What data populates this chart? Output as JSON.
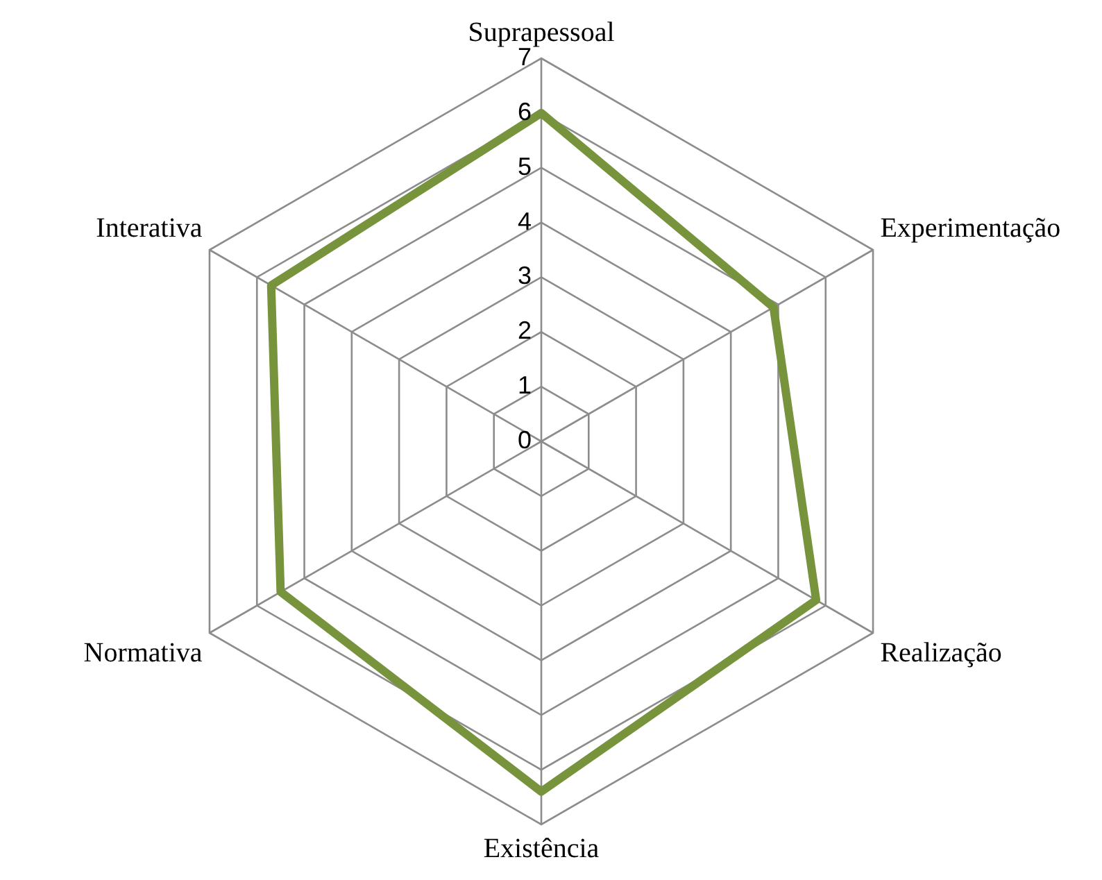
{
  "chart_data": {
    "type": "radar",
    "categories": [
      "Suprapessoal",
      "Experimentação",
      "Realização",
      "Existência",
      "Normativa",
      "Interativa"
    ],
    "series": [
      {
        "color": "#77933c",
        "values": [
          6.0,
          4.9,
          5.8,
          6.4,
          5.5,
          5.7
        ]
      }
    ],
    "ylim": [
      0,
      7
    ],
    "yticks": [
      0,
      1,
      2,
      3,
      4,
      5,
      6,
      7
    ],
    "grid": true,
    "legend": false,
    "marker": "none"
  }
}
